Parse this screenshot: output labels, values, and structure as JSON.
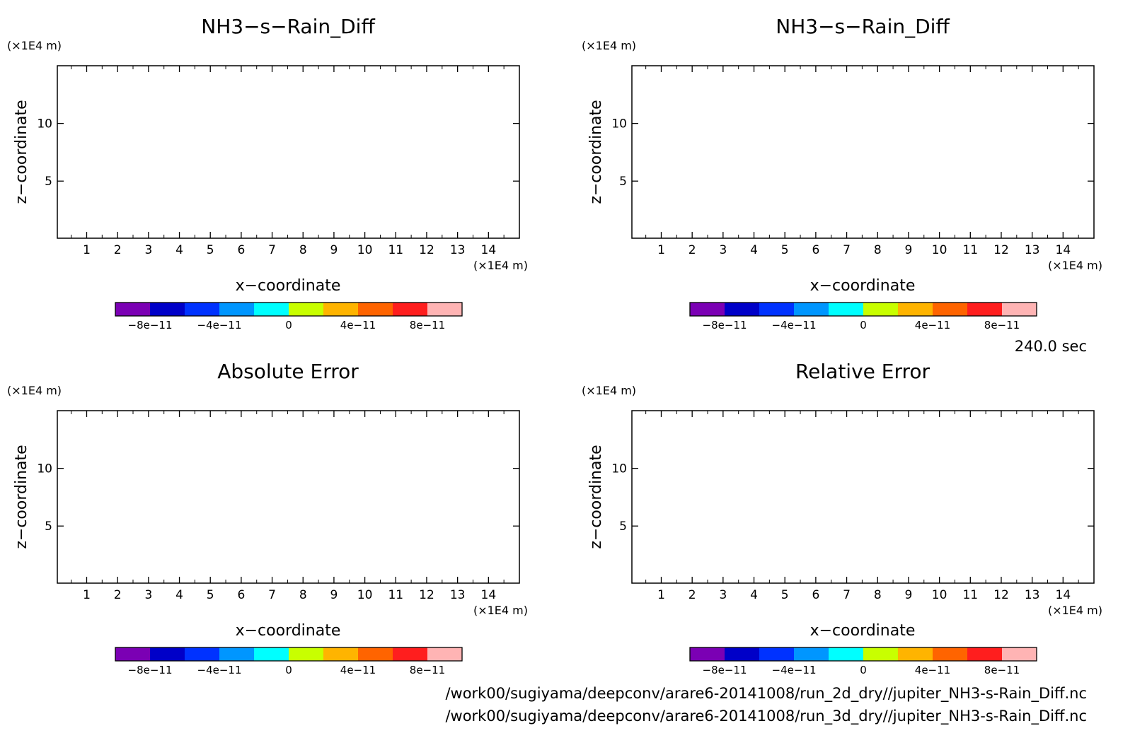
{
  "time_label": "240.0 sec",
  "source_files": [
    "/work00/sugiyama/deepconv/arare6-20141008/run_2d_dry//jupiter_NH3-s-Rain_Diff.nc",
    "/work00/sugiyama/deepconv/arare6-20141008/run_3d_dry//jupiter_NH3-s-Rain_Diff.nc"
  ],
  "colorbar": {
    "colors": [
      "#7b00b4",
      "#0000c8",
      "#0032ff",
      "#0096ff",
      "#00ffff",
      "#c8ff00",
      "#ffb400",
      "#ff6400",
      "#ff1e1e",
      "#ffb4b4"
    ],
    "boundaries": [
      -1e-10,
      -8e-11,
      -6e-11,
      -4e-11,
      -2e-11,
      0,
      2e-11,
      4e-11,
      6e-11,
      8e-11,
      1e-10
    ],
    "tick_values": [
      -8e-11,
      -4e-11,
      0,
      4e-11,
      8e-11
    ],
    "tick_labels": [
      "−8e−11",
      "−4e−11",
      "0",
      "4e−11",
      "8e−11"
    ]
  },
  "chart_data": [
    {
      "type": "heatmap",
      "title": "NH3−s−Rain_Diff",
      "xlabel": "x−coordinate",
      "ylabel": "z−coordinate",
      "xunit": "(×1E4 m)",
      "yunit": "(×1E4 m)",
      "xlim": [
        0.05,
        15.0
      ],
      "ylim": [
        0.05,
        15.0
      ],
      "xticks": [
        1,
        2,
        3,
        4,
        5,
        6,
        7,
        8,
        9,
        10,
        11,
        12,
        13,
        14
      ],
      "yticks": [
        5,
        10
      ],
      "values": []
    },
    {
      "type": "heatmap",
      "title": "NH3−s−Rain_Diff",
      "xlabel": "x−coordinate",
      "ylabel": "z−coordinate",
      "xunit": "(×1E4 m)",
      "yunit": "(×1E4 m)",
      "xlim": [
        0.05,
        15.0
      ],
      "ylim": [
        0.05,
        15.0
      ],
      "xticks": [
        1,
        2,
        3,
        4,
        5,
        6,
        7,
        8,
        9,
        10,
        11,
        12,
        13,
        14
      ],
      "yticks": [
        5,
        10
      ],
      "values": []
    },
    {
      "type": "heatmap",
      "title": "Absolute Error",
      "xlabel": "x−coordinate",
      "ylabel": "z−coordinate",
      "xunit": "(×1E4 m)",
      "yunit": "(×1E4 m)",
      "xlim": [
        0.05,
        15.0
      ],
      "ylim": [
        0.05,
        15.0
      ],
      "xticks": [
        1,
        2,
        3,
        4,
        5,
        6,
        7,
        8,
        9,
        10,
        11,
        12,
        13,
        14
      ],
      "yticks": [
        5,
        10
      ],
      "values": []
    },
    {
      "type": "heatmap",
      "title": "Relative Error",
      "xlabel": "x−coordinate",
      "ylabel": "z−coordinate",
      "xunit": "(×1E4 m)",
      "yunit": "(×1E4 m)",
      "xlim": [
        0.05,
        15.0
      ],
      "ylim": [
        0.05,
        15.0
      ],
      "xticks": [
        1,
        2,
        3,
        4,
        5,
        6,
        7,
        8,
        9,
        10,
        11,
        12,
        13,
        14
      ],
      "yticks": [
        5,
        10
      ],
      "values": []
    }
  ]
}
